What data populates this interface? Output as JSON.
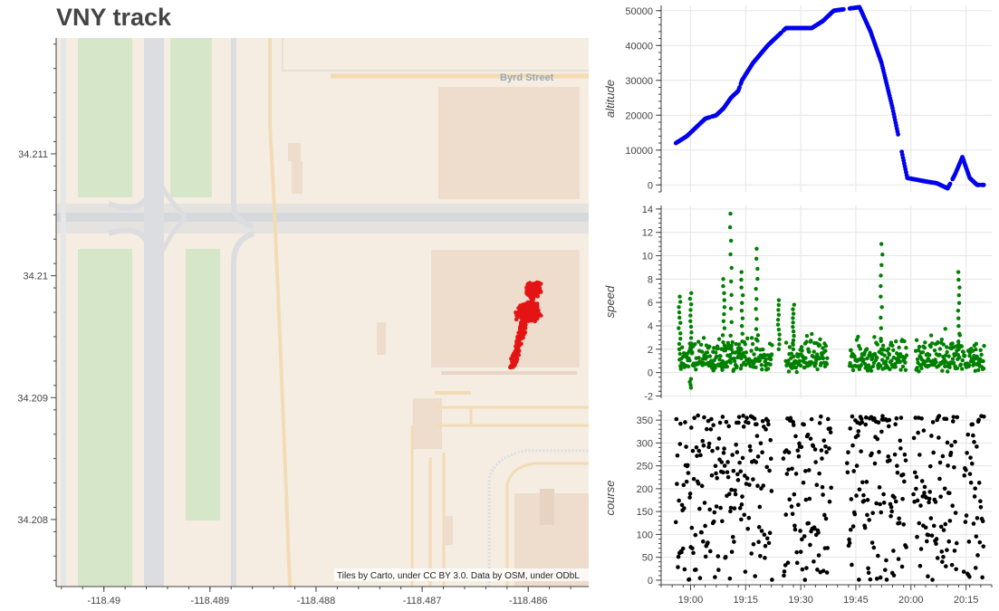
{
  "title": "VNY track",
  "map": {
    "street_label": "Byrd Street",
    "attribution": "Tiles by Carto, under CC BY 3.0. Data by OSM, under ODbL",
    "colors": {
      "background": "#f5ede2",
      "park": "#d6e7c9",
      "road": "#dcdde0",
      "building": "#eedccc",
      "track": "#e51414"
    }
  },
  "chart_data": [
    {
      "type": "scatter",
      "name": "map",
      "xlabel": "",
      "ylabel": "",
      "x_ticks": [
        "-118.49",
        "-118.489",
        "-118.488",
        "-118.487",
        "-118.486"
      ],
      "y_ticks": [
        "34.211",
        "34.21",
        "34.209",
        "34.208"
      ],
      "xlim": [
        -118.49045,
        -118.48543
      ],
      "ylim": [
        34.20745,
        34.21195
      ],
      "track_center": [
        -118.486,
        34.2097
      ],
      "track_extent": {
        "lon": [
          -118.48617,
          -118.48566
        ],
        "lat": [
          34.20922,
          34.21003
        ]
      }
    },
    {
      "type": "scatter",
      "name": "altitude",
      "ylabel": "altitude",
      "x_ticks": [
        "19:00",
        "19:15",
        "19:30",
        "19:45",
        "20:00",
        "20:15"
      ],
      "y_ticks": [
        "0",
        "10000",
        "20000",
        "30000",
        "40000",
        "50000"
      ],
      "xlim": [
        "18:52",
        "20:22"
      ],
      "ylim": [
        -2000,
        51500
      ],
      "color": "#0000ee",
      "points": [
        [
          "18:56",
          12000
        ],
        [
          "18:59",
          14000
        ],
        [
          "19:01",
          16000
        ],
        [
          "19:04",
          19000
        ],
        [
          "19:07",
          20000
        ],
        [
          "19:09",
          22000
        ],
        [
          "19:11",
          25000
        ],
        [
          "19:13",
          27000
        ],
        [
          "19:14",
          30000
        ],
        [
          "19:17",
          35000
        ],
        [
          "19:21",
          40000
        ],
        [
          "19:24",
          43000
        ],
        [
          "19:26",
          45000
        ],
        [
          "19:33",
          45000
        ],
        [
          "19:36",
          47000
        ],
        [
          "19:39",
          50000
        ],
        [
          "19:46",
          51000
        ],
        [
          "19:49",
          44000
        ],
        [
          "19:52",
          35000
        ],
        [
          "19:55",
          22000
        ],
        [
          "19:59",
          2000
        ],
        [
          "20:04",
          1000
        ],
        [
          "20:07",
          500
        ],
        [
          "20:10",
          -1000
        ],
        [
          "20:12",
          3000
        ],
        [
          "20:14",
          8000
        ],
        [
          "20:16",
          2000
        ],
        [
          "20:18",
          0
        ],
        [
          "20:20",
          0
        ]
      ]
    },
    {
      "type": "scatter",
      "name": "speed",
      "ylabel": "speed",
      "x_ticks": [
        "19:00",
        "19:15",
        "19:30",
        "19:45",
        "20:00",
        "20:15"
      ],
      "y_ticks": [
        "-2",
        "0",
        "2",
        "4",
        "6",
        "8",
        "10",
        "12",
        "14"
      ],
      "xlim": [
        "18:52",
        "20:22"
      ],
      "ylim": [
        -2.2,
        14.3
      ],
      "color": "#008000",
      "typical_range": [
        0,
        4
      ],
      "spikes": [
        [
          "18:57",
          6.5
        ],
        [
          "19:00",
          6.8
        ],
        [
          "19:09",
          8.0
        ],
        [
          "19:11",
          13.6
        ],
        [
          "19:14",
          8.6
        ],
        [
          "19:18",
          10.6
        ],
        [
          "19:24",
          6.2
        ],
        [
          "19:28",
          5.8
        ],
        [
          "19:52",
          11.0
        ],
        [
          "20:13",
          8.6
        ],
        [
          "19:00",
          -1.3
        ]
      ]
    },
    {
      "type": "scatter",
      "name": "course",
      "ylabel": "course",
      "x_ticks": [
        "19:00",
        "19:15",
        "19:30",
        "19:45",
        "20:00",
        "20:15"
      ],
      "y_ticks": [
        "0",
        "50",
        "100",
        "150",
        "200",
        "250",
        "300",
        "350"
      ],
      "xlim": [
        "18:52",
        "20:22"
      ],
      "ylim": [
        -10,
        370
      ],
      "color": "#000000",
      "value_range": [
        0,
        360
      ]
    }
  ]
}
